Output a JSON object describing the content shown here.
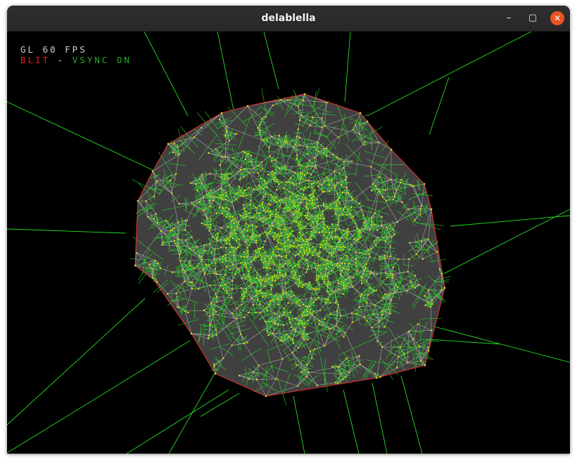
{
  "window": {
    "title": "delablella",
    "buttons": {
      "minimize_icon": "minimize-icon",
      "maximize_icon": "maximize-icon",
      "close_icon": "close-icon"
    },
    "glyphs": {
      "minimize": "–",
      "maximize": "▢",
      "close": "✕"
    }
  },
  "hud": {
    "fps_label": "GL 60 FPS",
    "blit_label": "BLIT",
    "separator": "-",
    "vsync_label": "VSYNC ON"
  },
  "colors": {
    "background": "#000000",
    "hull_fill": "#404040",
    "hull_edge": "#e03030",
    "delaunay_edges": "#c8c8c8",
    "voronoi_edges": "#22dd22",
    "points": "#e8f020",
    "fps_text": "#cfcfcf",
    "blit_text": "#e02020",
    "vsync_text": "#26a826",
    "close_button": "#e95420"
  }
}
